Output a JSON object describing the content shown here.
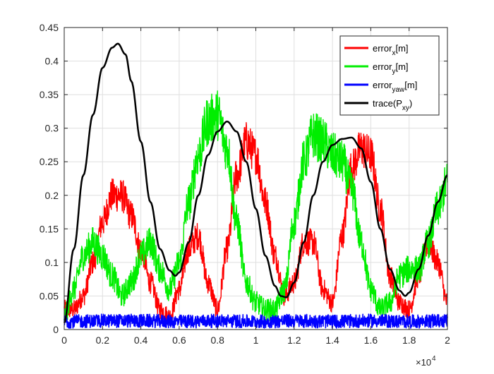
{
  "chart_data": {
    "type": "line",
    "title": "",
    "xlabel": "",
    "ylabel": "",
    "x_exponent_label": "×10",
    "x_exponent_power": "4",
    "xlim": [
      0,
      20000
    ],
    "ylim": [
      0,
      0.45
    ],
    "grid": true,
    "legend_position": "top-right",
    "x_ticks": [
      {
        "value": 0,
        "label": "0"
      },
      {
        "value": 2000,
        "label": "0.2"
      },
      {
        "value": 4000,
        "label": "0.4"
      },
      {
        "value": 6000,
        "label": "0.6"
      },
      {
        "value": 8000,
        "label": "0.8"
      },
      {
        "value": 10000,
        "label": "1"
      },
      {
        "value": 12000,
        "label": "1.2"
      },
      {
        "value": 14000,
        "label": "1.4"
      },
      {
        "value": 16000,
        "label": "1.6"
      },
      {
        "value": 18000,
        "label": "1.8"
      },
      {
        "value": 20000,
        "label": "2"
      }
    ],
    "y_ticks": [
      {
        "value": 0,
        "label": "0"
      },
      {
        "value": 0.05,
        "label": "0.05"
      },
      {
        "value": 0.1,
        "label": "0.1"
      },
      {
        "value": 0.15,
        "label": "0.15"
      },
      {
        "value": 0.2,
        "label": "0.2"
      },
      {
        "value": 0.25,
        "label": "0.25"
      },
      {
        "value": 0.3,
        "label": "0.3"
      },
      {
        "value": 0.35,
        "label": "0.35"
      },
      {
        "value": 0.4,
        "label": "0.4"
      },
      {
        "value": 0.45,
        "label": "0.45"
      }
    ],
    "series": [
      {
        "key": "error-x",
        "legend_base": "error",
        "legend_sub": "x",
        "legend_suffix": "[m]",
        "color": "#ff0000",
        "noise": 0.03,
        "x": [
          0,
          500,
          1000,
          1500,
          2000,
          2500,
          3000,
          3500,
          4000,
          4500,
          5000,
          5500,
          6000,
          6500,
          7000,
          7500,
          8000,
          8500,
          9000,
          9500,
          10000,
          10500,
          11000,
          11500,
          12000,
          12500,
          13000,
          13500,
          14000,
          14500,
          15000,
          15500,
          16000,
          16500,
          17000,
          17500,
          18000,
          18500,
          19000,
          19500,
          20000
        ],
        "y": [
          0.03,
          0.03,
          0.05,
          0.1,
          0.16,
          0.2,
          0.2,
          0.17,
          0.12,
          0.07,
          0.03,
          0.02,
          0.06,
          0.12,
          0.14,
          0.07,
          0.03,
          0.12,
          0.23,
          0.28,
          0.26,
          0.19,
          0.11,
          0.05,
          0.07,
          0.13,
          0.13,
          0.06,
          0.04,
          0.14,
          0.24,
          0.27,
          0.26,
          0.18,
          0.08,
          0.04,
          0.03,
          0.08,
          0.13,
          0.1,
          0.04
        ]
      },
      {
        "key": "error-y",
        "legend_base": "error",
        "legend_sub": "y",
        "legend_suffix": "[m]",
        "color": "#00ee00",
        "noise": 0.035,
        "x": [
          0,
          500,
          1000,
          1500,
          2000,
          2500,
          3000,
          3500,
          4000,
          4500,
          5000,
          5500,
          6000,
          6500,
          7000,
          7500,
          8000,
          8500,
          9000,
          9500,
          10000,
          10500,
          11000,
          11500,
          12000,
          12500,
          13000,
          13500,
          14000,
          14500,
          15000,
          15500,
          16000,
          16500,
          17000,
          17500,
          18000,
          18500,
          19000,
          19500,
          20000
        ],
        "y": [
          0.02,
          0.06,
          0.11,
          0.13,
          0.11,
          0.08,
          0.05,
          0.07,
          0.11,
          0.13,
          0.09,
          0.06,
          0.1,
          0.19,
          0.26,
          0.31,
          0.32,
          0.27,
          0.16,
          0.07,
          0.04,
          0.03,
          0.03,
          0.06,
          0.16,
          0.25,
          0.29,
          0.28,
          0.26,
          0.25,
          0.21,
          0.13,
          0.06,
          0.03,
          0.04,
          0.08,
          0.09,
          0.09,
          0.13,
          0.18,
          0.22
        ]
      },
      {
        "key": "error-yaw",
        "legend_base": "error",
        "legend_sub": "yaw",
        "legend_suffix": "[m]",
        "color": "#0000ff",
        "noise": 0.01,
        "x": [
          0,
          2000,
          4000,
          6000,
          8000,
          10000,
          12000,
          14000,
          16000,
          18000,
          20000
        ],
        "y": [
          0.012,
          0.013,
          0.013,
          0.012,
          0.013,
          0.012,
          0.013,
          0.012,
          0.013,
          0.012,
          0.013
        ]
      },
      {
        "key": "trace-pxy",
        "legend_base": "trace(P",
        "legend_sub": "xy",
        "legend_suffix": ")",
        "color": "#000000",
        "noise": 0,
        "x": [
          0,
          500,
          1000,
          1500,
          2000,
          2500,
          2800,
          3200,
          3500,
          4000,
          4500,
          5000,
          5500,
          5800,
          6000,
          6500,
          7000,
          7500,
          8000,
          8500,
          9000,
          9500,
          10000,
          10500,
          11000,
          11300,
          11600,
          12000,
          12500,
          13000,
          13500,
          14000,
          14500,
          15000,
          15500,
          16000,
          16500,
          17000,
          17500,
          17800,
          18000,
          18500,
          19000,
          19500,
          20000
        ],
        "y": [
          0.01,
          0.12,
          0.23,
          0.32,
          0.39,
          0.42,
          0.426,
          0.41,
          0.37,
          0.28,
          0.19,
          0.12,
          0.088,
          0.08,
          0.085,
          0.13,
          0.2,
          0.26,
          0.295,
          0.31,
          0.295,
          0.25,
          0.18,
          0.11,
          0.065,
          0.05,
          0.048,
          0.07,
          0.13,
          0.2,
          0.25,
          0.275,
          0.284,
          0.286,
          0.27,
          0.22,
          0.15,
          0.09,
          0.058,
          0.05,
          0.055,
          0.09,
          0.14,
          0.19,
          0.23
        ]
      }
    ]
  }
}
